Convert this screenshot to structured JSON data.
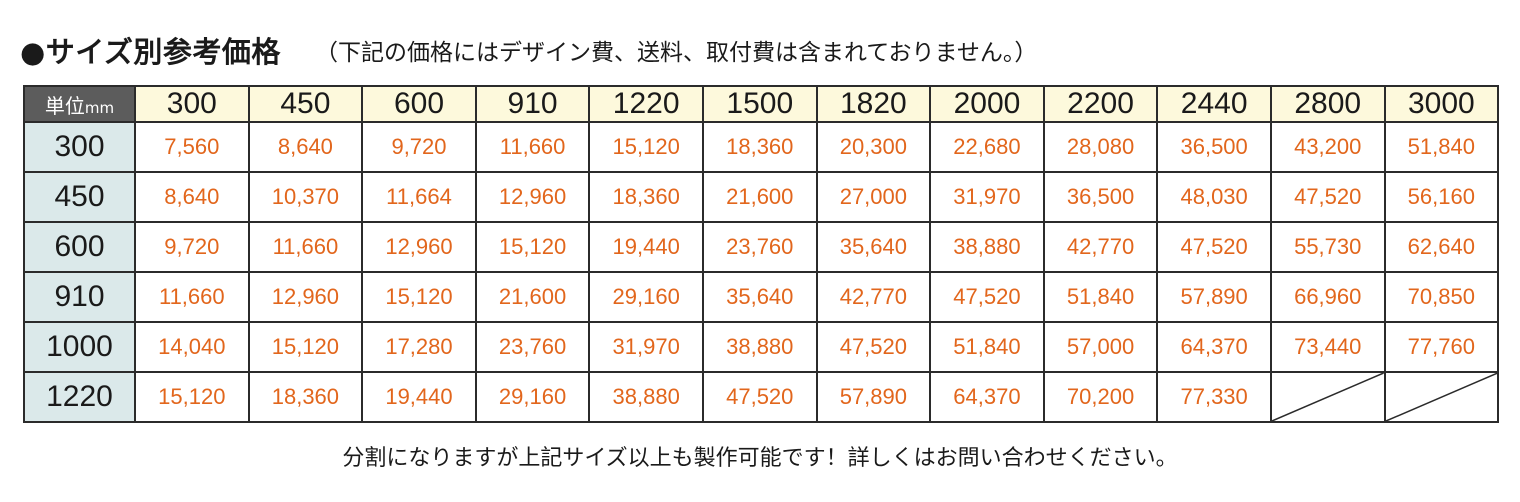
{
  "title": "●サイズ別参考価格",
  "note": "（下記の価格にはデザイン費、送料、取付費は含まれておりません。）",
  "table": {
    "corner_label": "単位",
    "corner_unit": "mm",
    "widths": [
      "300",
      "450",
      "600",
      "910",
      "1220",
      "1500",
      "1820",
      "2000",
      "2200",
      "2440",
      "2800",
      "3000"
    ],
    "rows": [
      {
        "height": "300",
        "prices": [
          "7,560",
          "8,640",
          "9,720",
          "11,660",
          "15,120",
          "18,360",
          "20,300",
          "22,680",
          "28,080",
          "36,500",
          "43,200",
          "51,840"
        ]
      },
      {
        "height": "450",
        "prices": [
          "8,640",
          "10,370",
          "11,664",
          "12,960",
          "18,360",
          "21,600",
          "27,000",
          "31,970",
          "36,500",
          "48,030",
          "47,520",
          "56,160"
        ]
      },
      {
        "height": "600",
        "prices": [
          "9,720",
          "11,660",
          "12,960",
          "15,120",
          "19,440",
          "23,760",
          "35,640",
          "38,880",
          "42,770",
          "47,520",
          "55,730",
          "62,640"
        ]
      },
      {
        "height": "910",
        "prices": [
          "11,660",
          "12,960",
          "15,120",
          "21,600",
          "29,160",
          "35,640",
          "42,770",
          "47,520",
          "51,840",
          "57,890",
          "66,960",
          "70,850"
        ]
      },
      {
        "height": "1000",
        "prices": [
          "14,040",
          "15,120",
          "17,280",
          "23,760",
          "31,970",
          "38,880",
          "47,520",
          "51,840",
          "57,000",
          "64,370",
          "73,440",
          "77,760"
        ]
      },
      {
        "height": "1220",
        "prices": [
          "15,120",
          "18,360",
          "19,440",
          "29,160",
          "38,880",
          "47,520",
          "57,890",
          "64,370",
          "70,200",
          "77,330",
          null,
          null
        ]
      }
    ]
  },
  "footer": "分割になりますが上記サイズ以上も製作可能です！詳しくはお問い合わせください。",
  "colors": {
    "price_text": "#e2661c",
    "header_bg": "#fdf9dc",
    "row_header_bg": "#dbe9ea",
    "corner_bg": "#5c5c5c"
  }
}
